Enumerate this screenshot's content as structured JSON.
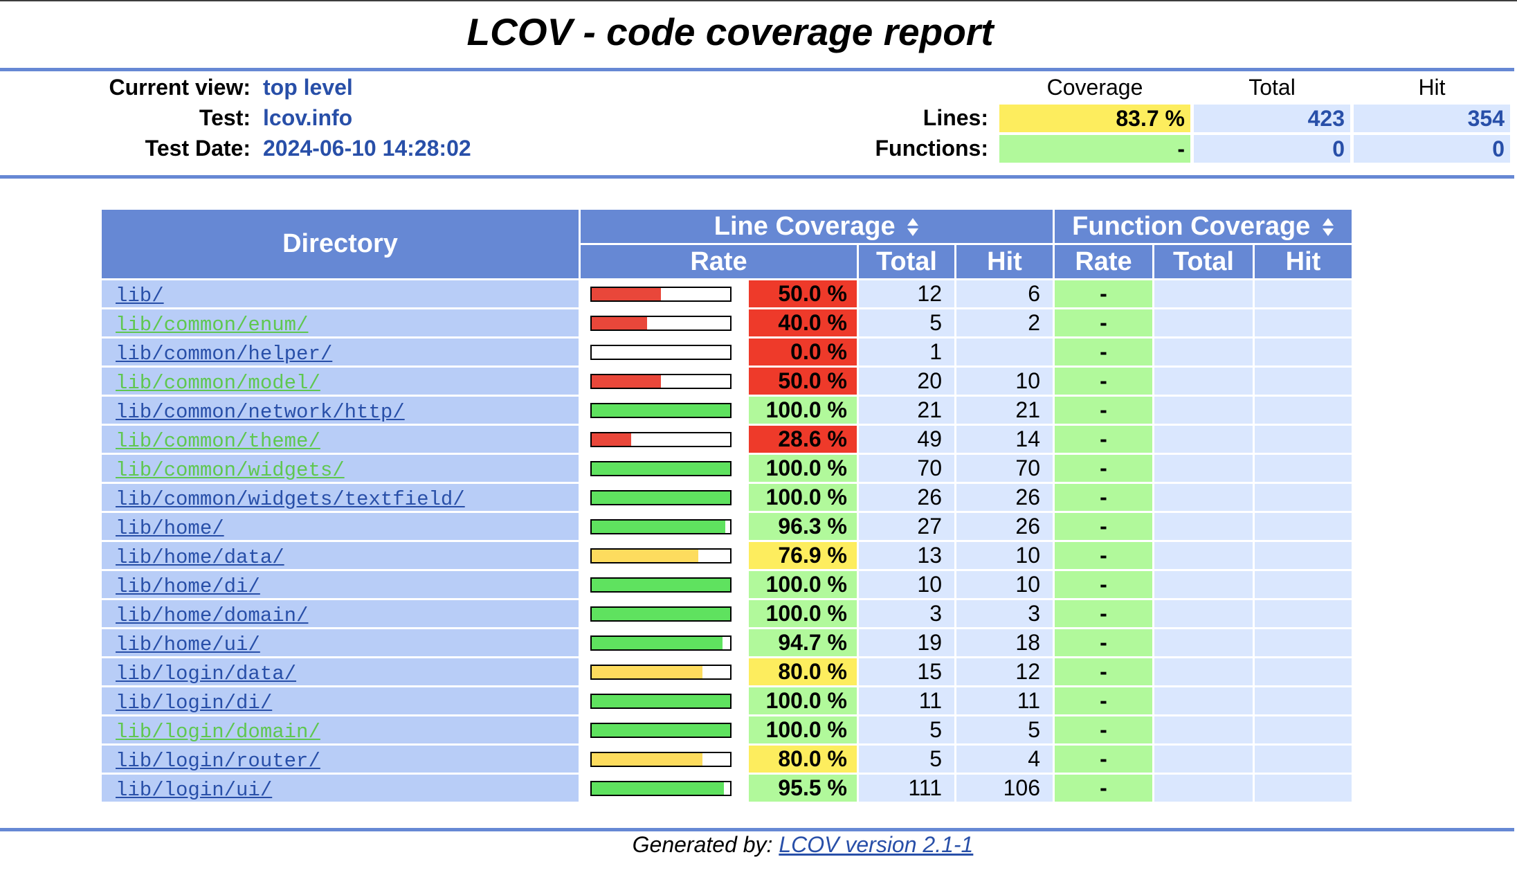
{
  "header": {
    "title": "LCOV - code coverage report"
  },
  "info": {
    "current_view_label": "Current view:",
    "current_view_value": "top level",
    "test_label": "Test:",
    "test_value": "lcov.info",
    "test_date_label": "Test Date:",
    "test_date_value": "2024-06-10 14:28:02"
  },
  "summary": {
    "col_coverage": "Coverage",
    "col_total": "Total",
    "col_hit": "Hit",
    "lines_label": "Lines:",
    "lines_coverage": "83.7 %",
    "lines_total": "423",
    "lines_hit": "354",
    "functions_label": "Functions:",
    "functions_coverage": "-",
    "functions_total": "0",
    "functions_hit": "0"
  },
  "table": {
    "dir_header": "Directory",
    "line_cov_header": "Line Coverage",
    "func_cov_header": "Function Coverage",
    "rate": "Rate",
    "total": "Total",
    "hit": "Hit",
    "sort_icon": "sort-up-down-icon",
    "rows": [
      {
        "dir": "lib/",
        "visited": false,
        "pct": 50.0,
        "rate": "50.0 %",
        "level": "lo",
        "total": "12",
        "hit": "6",
        "frate": "-"
      },
      {
        "dir": "lib/common/enum/",
        "visited": true,
        "pct": 40.0,
        "rate": "40.0 %",
        "level": "lo",
        "total": "5",
        "hit": "2",
        "frate": "-"
      },
      {
        "dir": "lib/common/helper/",
        "visited": false,
        "pct": 0.0,
        "rate": "0.0 %",
        "level": "lo",
        "total": "1",
        "hit": "",
        "frate": "-"
      },
      {
        "dir": "lib/common/model/",
        "visited": true,
        "pct": 50.0,
        "rate": "50.0 %",
        "level": "lo",
        "total": "20",
        "hit": "10",
        "frate": "-"
      },
      {
        "dir": "lib/common/network/http/",
        "visited": false,
        "pct": 100.0,
        "rate": "100.0 %",
        "level": "hi",
        "total": "21",
        "hit": "21",
        "frate": "-"
      },
      {
        "dir": "lib/common/theme/",
        "visited": true,
        "pct": 28.6,
        "rate": "28.6 %",
        "level": "lo",
        "total": "49",
        "hit": "14",
        "frate": "-"
      },
      {
        "dir": "lib/common/widgets/",
        "visited": true,
        "pct": 100.0,
        "rate": "100.0 %",
        "level": "hi",
        "total": "70",
        "hit": "70",
        "frate": "-"
      },
      {
        "dir": "lib/common/widgets/textfield/",
        "visited": false,
        "pct": 100.0,
        "rate": "100.0 %",
        "level": "hi",
        "total": "26",
        "hit": "26",
        "frate": "-"
      },
      {
        "dir": "lib/home/",
        "visited": false,
        "pct": 96.3,
        "rate": "96.3 %",
        "level": "hi",
        "total": "27",
        "hit": "26",
        "frate": "-"
      },
      {
        "dir": "lib/home/data/",
        "visited": false,
        "pct": 76.9,
        "rate": "76.9 %",
        "level": "med",
        "total": "13",
        "hit": "10",
        "frate": "-"
      },
      {
        "dir": "lib/home/di/",
        "visited": false,
        "pct": 100.0,
        "rate": "100.0 %",
        "level": "hi",
        "total": "10",
        "hit": "10",
        "frate": "-"
      },
      {
        "dir": "lib/home/domain/",
        "visited": false,
        "pct": 100.0,
        "rate": "100.0 %",
        "level": "hi",
        "total": "3",
        "hit": "3",
        "frate": "-"
      },
      {
        "dir": "lib/home/ui/",
        "visited": false,
        "pct": 94.7,
        "rate": "94.7 %",
        "level": "hi",
        "total": "19",
        "hit": "18",
        "frate": "-"
      },
      {
        "dir": "lib/login/data/",
        "visited": false,
        "pct": 80.0,
        "rate": "80.0 %",
        "level": "med",
        "total": "15",
        "hit": "12",
        "frate": "-"
      },
      {
        "dir": "lib/login/di/",
        "visited": false,
        "pct": 100.0,
        "rate": "100.0 %",
        "level": "hi",
        "total": "11",
        "hit": "11",
        "frate": "-"
      },
      {
        "dir": "lib/login/domain/",
        "visited": true,
        "pct": 100.0,
        "rate": "100.0 %",
        "level": "hi",
        "total": "5",
        "hit": "5",
        "frate": "-"
      },
      {
        "dir": "lib/login/router/",
        "visited": false,
        "pct": 80.0,
        "rate": "80.0 %",
        "level": "med",
        "total": "5",
        "hit": "4",
        "frate": "-"
      },
      {
        "dir": "lib/login/ui/",
        "visited": false,
        "pct": 95.5,
        "rate": "95.5 %",
        "level": "hi",
        "total": "111",
        "hit": "106",
        "frate": "-"
      }
    ]
  },
  "colors": {
    "hi_bar": "#5fe25f",
    "med_bar": "#fddc5e",
    "lo_bar": "#e9473a",
    "link": "#284fa8",
    "visited_link": "#5fc750"
  },
  "footer": {
    "generated_by": "Generated by:",
    "link_text": "LCOV version 2.1-1"
  }
}
